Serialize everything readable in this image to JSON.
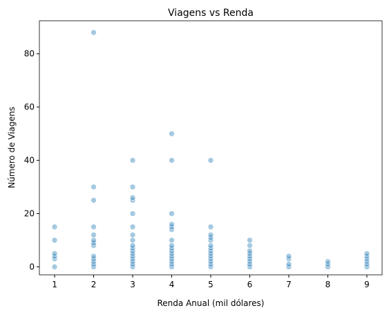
{
  "chart_data": {
    "type": "scatter",
    "title": "Viagens vs Renda",
    "x_label": "Renda Anual (mil dólares)",
    "y_label": "Número de Viagens",
    "series": [
      {
        "color": "#1f77b4",
        "x": [
          1,
          1,
          1,
          1,
          1,
          1,
          2,
          2,
          2,
          2,
          2,
          2,
          2,
          2,
          2,
          2,
          2,
          2,
          2,
          3,
          3,
          3,
          3,
          3,
          3,
          3,
          3,
          3,
          3,
          3,
          3,
          3,
          3,
          3,
          3,
          3,
          4,
          4,
          4,
          4,
          4,
          4,
          4,
          4,
          4,
          4,
          4,
          4,
          4,
          4,
          4,
          4,
          5,
          5,
          5,
          5,
          5,
          5,
          5,
          5,
          5,
          5,
          5,
          5,
          5,
          5,
          6,
          6,
          6,
          6,
          6,
          6,
          6,
          6,
          6,
          7,
          7,
          7,
          7,
          8,
          8,
          8,
          9,
          9,
          9,
          9,
          9,
          9
        ],
        "values": [
          0,
          3,
          4,
          5,
          10,
          15,
          0,
          1,
          2,
          3,
          4,
          8,
          9,
          10,
          12,
          15,
          25,
          30,
          88,
          0,
          1,
          2,
          3,
          4,
          5,
          6,
          7,
          8,
          10,
          12,
          15,
          20,
          25,
          26,
          30,
          40,
          0,
          1,
          2,
          3,
          4,
          5,
          6,
          7,
          8,
          10,
          14,
          15,
          16,
          20,
          40,
          50,
          0,
          1,
          2,
          3,
          4,
          5,
          6,
          7,
          8,
          10,
          11,
          12,
          15,
          40,
          0,
          1,
          2,
          3,
          4,
          5,
          6,
          8,
          10,
          0,
          1,
          3,
          4,
          0,
          1,
          2,
          0,
          1,
          2,
          3,
          4,
          5
        ]
      }
    ],
    "xlim": [
      0.61,
      9.39
    ],
    "ylim": [
      -3,
      92.4
    ],
    "xticks": [
      1,
      2,
      3,
      4,
      5,
      6,
      7,
      8,
      9
    ],
    "yticks": [
      0,
      20,
      40,
      60,
      80
    ]
  }
}
